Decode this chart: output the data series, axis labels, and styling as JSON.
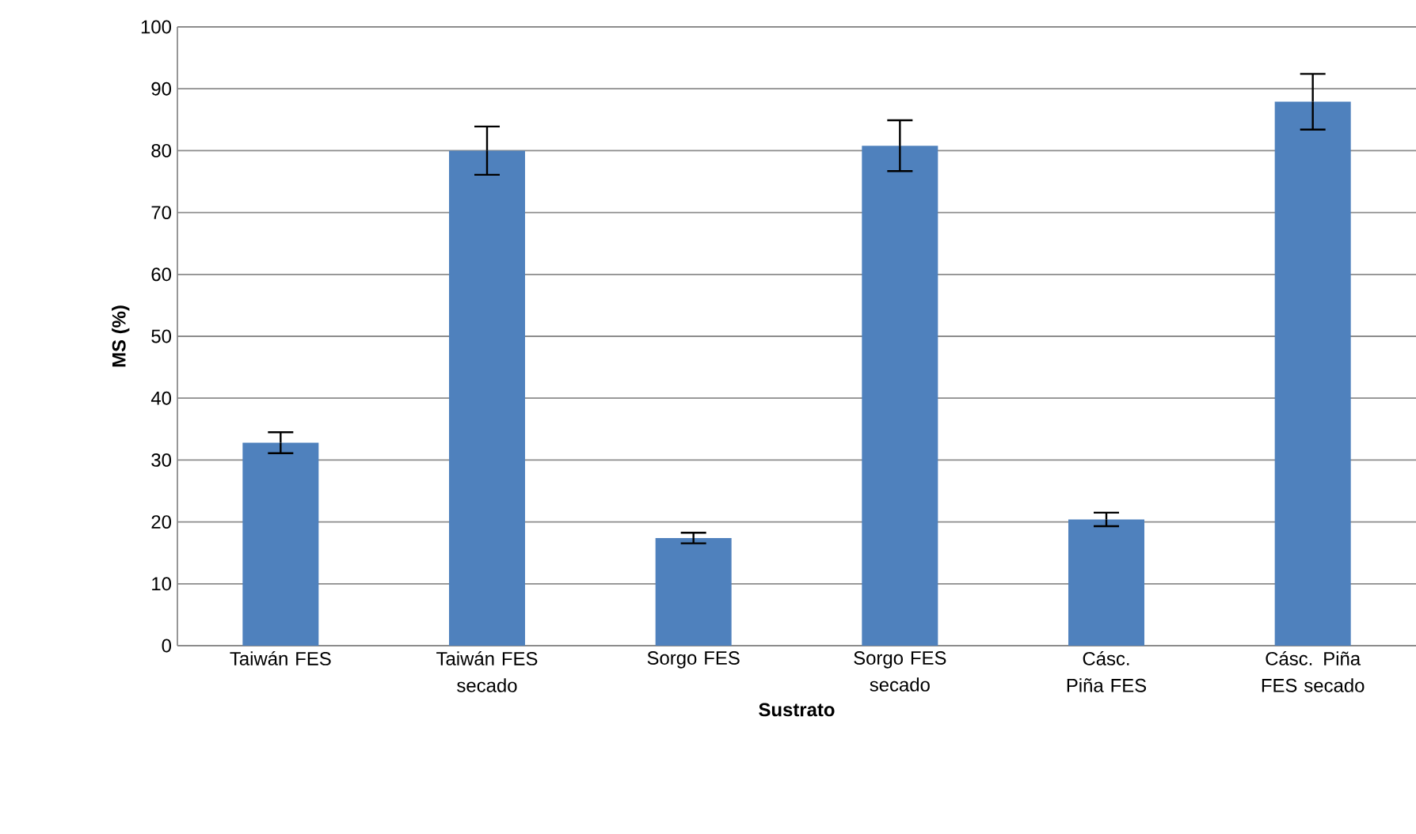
{
  "chart_data": {
    "type": "bar",
    "xlabel": "Sustrato",
    "ylabel": "MS (%)",
    "categories": [
      "Taiwán FES",
      "Taiwán FES secado",
      "Sorgo FES",
      "Sorgo FES secado",
      "Cásc. Piña FES",
      "Cásc. Piña FES secado"
    ],
    "values": [
      32.8,
      80,
      17.4,
      80.8,
      20.4,
      87.9
    ],
    "errors": [
      1.7,
      3.9,
      0.85,
      4.1,
      1.1,
      4.5
    ],
    "color": "#4f81bd",
    "ylim": [
      0,
      100
    ],
    "yticks": [
      0,
      10,
      20,
      30,
      40,
      50,
      60,
      70,
      80,
      90,
      100
    ],
    "grid": "y"
  }
}
